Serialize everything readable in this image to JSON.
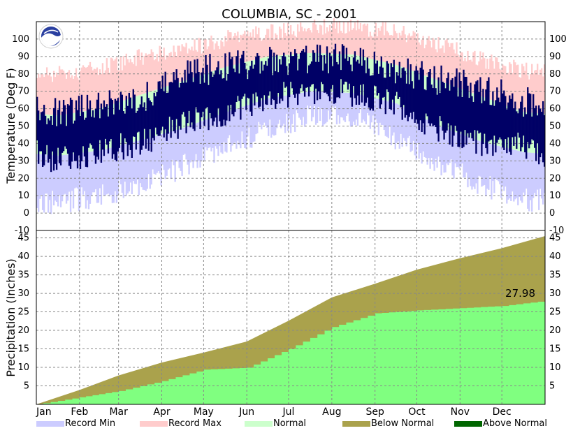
{
  "chart_data": {
    "type": "area",
    "title": "COLUMBIA, SC - 2001",
    "months": [
      "Jan",
      "Feb",
      "Mar",
      "Apr",
      "May",
      "Jun",
      "Jul",
      "Aug",
      "Sep",
      "Oct",
      "Nov",
      "Dec"
    ],
    "temperature": {
      "ylabel": "Temperature (Deg F)",
      "ylim": [
        -10,
        110
      ],
      "ticks": [
        -10,
        0,
        10,
        20,
        30,
        40,
        50,
        60,
        70,
        80,
        90,
        100
      ],
      "monthly_normal_high": [
        56,
        60,
        68,
        76,
        84,
        90,
        92,
        91,
        85,
        76,
        67,
        58
      ],
      "monthly_normal_low": [
        33,
        36,
        42,
        49,
        58,
        66,
        70,
        69,
        63,
        50,
        41,
        35
      ],
      "monthly_record_high": [
        80,
        83,
        90,
        94,
        100,
        104,
        107,
        107,
        104,
        97,
        88,
        82
      ],
      "monthly_record_low": [
        6,
        10,
        15,
        27,
        38,
        48,
        56,
        56,
        42,
        28,
        16,
        8
      ],
      "monthly_observed_high": [
        57,
        62,
        66,
        80,
        84,
        87,
        89,
        88,
        82,
        76,
        72,
        64
      ],
      "monthly_observed_low": [
        30,
        36,
        40,
        52,
        58,
        66,
        70,
        69,
        62,
        48,
        40,
        38
      ]
    },
    "precipitation": {
      "ylabel": "Precipitation (Inches)",
      "ylim": [
        0,
        47
      ],
      "ticks": [
        5,
        10,
        15,
        20,
        25,
        30,
        35,
        40,
        45
      ],
      "annotation": "27.98",
      "normal_cumulative_month_end": [
        3.9,
        7.8,
        11.3,
        14.0,
        17.0,
        22.6,
        28.9,
        32.6,
        36.4,
        39.5,
        42.2,
        45.5
      ],
      "observed_cumulative_month_end": [
        1.9,
        3.6,
        6.3,
        9.4,
        9.9,
        15.0,
        20.9,
        24.6,
        25.4,
        26.0,
        26.6,
        27.98
      ]
    },
    "legend": [
      {
        "label": "Record Min",
        "color": "#ccccff"
      },
      {
        "label": "Record Max",
        "color": "#ffcccc"
      },
      {
        "label": "Normal",
        "color": "#ccffcc"
      },
      {
        "label": "Below Normal",
        "color": "#aaa24c"
      },
      {
        "label": "Above Normal",
        "color": "#006600"
      }
    ],
    "colors": {
      "observed_temp": "#000066",
      "observed_precip": "#80ff80",
      "grid": "#888888"
    }
  }
}
